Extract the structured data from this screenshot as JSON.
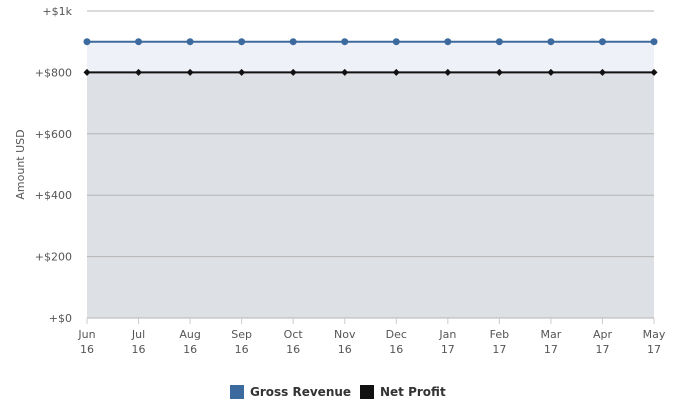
{
  "chart_data": {
    "type": "area",
    "ylabel": "Amount USD",
    "categories": [
      "Jun 16",
      "Jul 16",
      "Aug 16",
      "Sep 16",
      "Oct 16",
      "Nov 16",
      "Dec 16",
      "Jan 17",
      "Feb 17",
      "Mar 17",
      "Apr 17",
      "May 17"
    ],
    "ylim": [
      0,
      1000
    ],
    "y_ticks": [
      0,
      200,
      400,
      600,
      800,
      1000
    ],
    "y_tick_labels": [
      "+$0",
      "+$200",
      "+$400",
      "+$600",
      "+$800",
      "+$1k"
    ],
    "grid": true,
    "legend_position": "bottom-center",
    "series": [
      {
        "name": "Gross Revenue",
        "color": "#3d6a9e",
        "fill": "#eef1f8",
        "marker": "circle",
        "values": [
          900,
          900,
          900,
          900,
          900,
          900,
          900,
          900,
          900,
          900,
          900,
          900
        ]
      },
      {
        "name": "Net Profit",
        "color": "#111111",
        "fill": "#dde0e4",
        "marker": "diamond",
        "values": [
          800,
          800,
          800,
          800,
          800,
          800,
          800,
          800,
          800,
          800,
          800,
          800
        ]
      }
    ]
  }
}
